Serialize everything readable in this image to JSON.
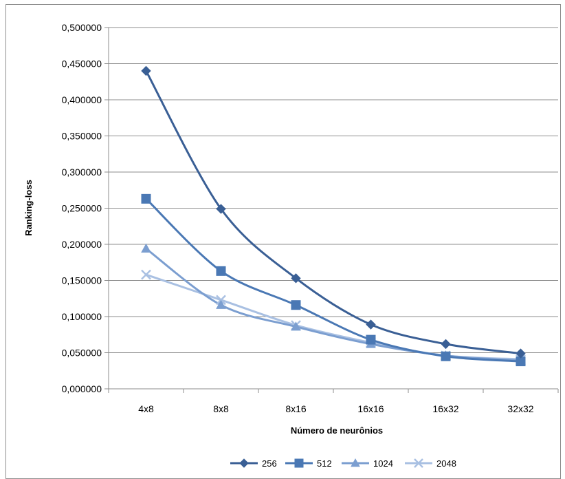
{
  "chart_data": {
    "type": "line",
    "title": "",
    "xlabel": "Número de neurônios",
    "ylabel": "Ranking-loss",
    "categories": [
      "4x8",
      "8x8",
      "8x16",
      "16x16",
      "16x32",
      "32x32"
    ],
    "ylim": [
      0,
      0.5
    ],
    "y_ticks": [
      "0,000000",
      "0,050000",
      "0,100000",
      "0,150000",
      "0,200000",
      "0,250000",
      "0,300000",
      "0,350000",
      "0,400000",
      "0,450000",
      "0,500000"
    ],
    "grid": true,
    "legend_position": "bottom",
    "series": [
      {
        "name": "256",
        "values": [
          0.44,
          0.249,
          0.153,
          0.089,
          0.062,
          0.049
        ],
        "color": "#3a5f95",
        "marker": "diamond"
      },
      {
        "name": "512",
        "values": [
          0.263,
          0.163,
          0.116,
          0.068,
          0.045,
          0.038
        ],
        "color": "#4a78b4",
        "marker": "square"
      },
      {
        "name": "1024",
        "values": [
          0.194,
          0.116,
          0.086,
          0.062,
          0.046,
          0.039
        ],
        "color": "#7b9ed0",
        "marker": "triangle"
      },
      {
        "name": "2048",
        "values": [
          0.158,
          0.123,
          0.088,
          0.064,
          0.046,
          0.041
        ],
        "color": "#a9c0e2",
        "marker": "x"
      }
    ]
  }
}
